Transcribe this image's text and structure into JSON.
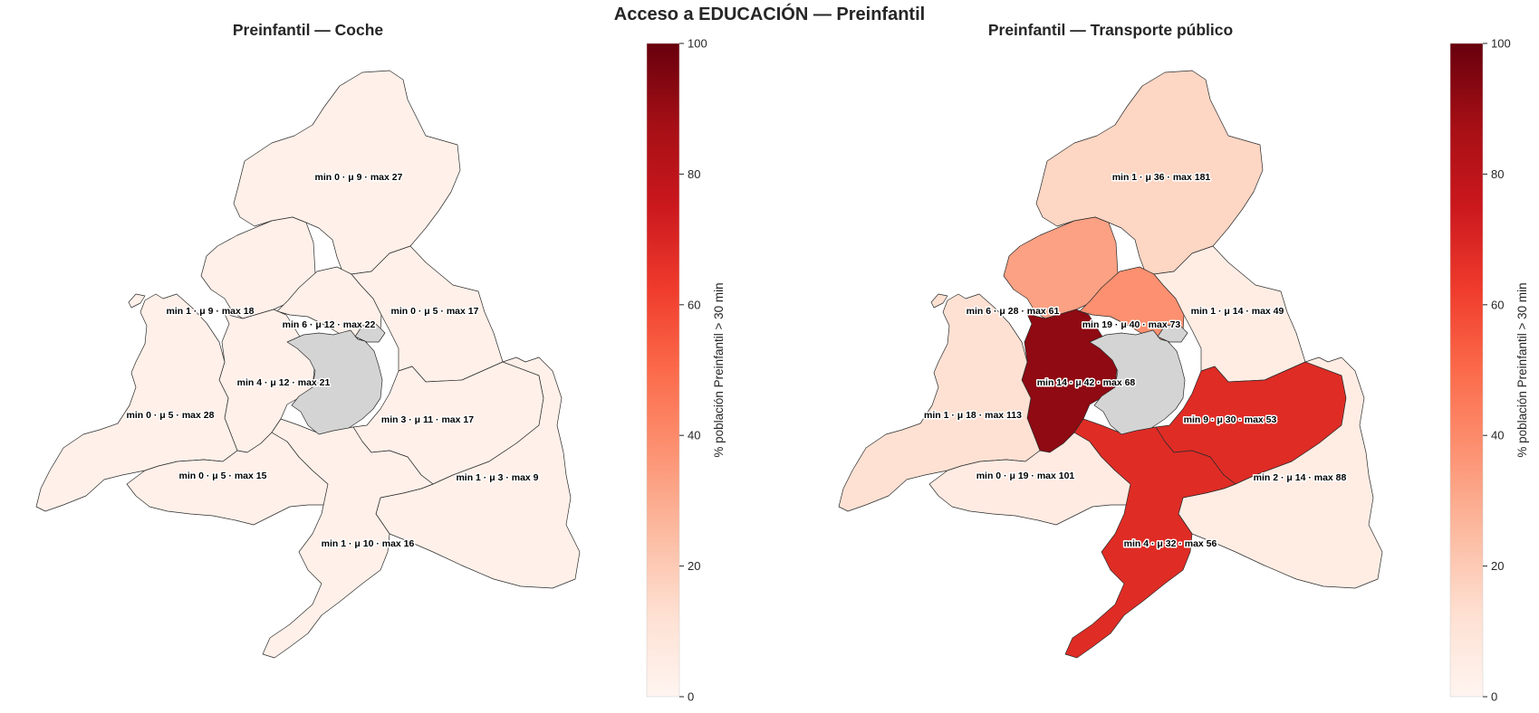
{
  "suptitle": "Acceso a EDUCACIÓN — Preinfantil",
  "colors": {
    "missing": "#d4d4d4",
    "cmap": "Reds",
    "border": "#2b2b2b"
  },
  "colorbar": {
    "label": "% población Preinfantil > 30 min",
    "ticks": [
      "0",
      "20",
      "40",
      "60",
      "80",
      "100"
    ],
    "vmin": 0,
    "vmax": 100
  },
  "chart_data": [
    {
      "type": "choropleth",
      "title": "Preinfantil — Coche",
      "value_label": "% población Preinfantil > 30 min",
      "regions": [
        {
          "id": "north",
          "label": "min 0 · μ 9 · max 27",
          "pct": 3
        },
        {
          "id": "northwest",
          "label": "min 1 · μ 9 · max 18",
          "pct": 3
        },
        {
          "id": "centernorth",
          "label": "min 6 · μ 12 · max 22",
          "pct": 3
        },
        {
          "id": "northeast",
          "label": "min 0 · μ 5 · max 17",
          "pct": 3
        },
        {
          "id": "westcenter",
          "label": "min 4 · μ 12 · max 21",
          "pct": 3
        },
        {
          "id": "farwest",
          "label": "min 0 · μ 5 · max 28",
          "pct": 3
        },
        {
          "id": "east",
          "label": "min 3 · μ 11 · max 17",
          "pct": 3
        },
        {
          "id": "southwest",
          "label": "min 0 · μ 5 · max 15",
          "pct": 3
        },
        {
          "id": "farEast",
          "label": "min 1 · μ 3 · max 9",
          "pct": 3
        },
        {
          "id": "south",
          "label": "min 1 · μ 10 · max 16",
          "pct": 3
        },
        {
          "id": "capital",
          "label": "",
          "pct": null
        }
      ]
    },
    {
      "type": "choropleth",
      "title": "Preinfantil — Transporte público",
      "value_label": "% población Preinfantil > 30 min",
      "regions": [
        {
          "id": "north",
          "label": "min 1 · μ 36 · max 181",
          "pct": 16
        },
        {
          "id": "northwest",
          "label": "min 6 · μ 28 · max 61",
          "pct": 33
        },
        {
          "id": "centernorth",
          "label": "min 19 · μ 40 · max 73",
          "pct": 38
        },
        {
          "id": "northeast",
          "label": "min 1 · μ 14 · max 49",
          "pct": 5
        },
        {
          "id": "westcenter",
          "label": "min 14 · μ 42 · max 68",
          "pct": 92
        },
        {
          "id": "farwest",
          "label": "min 1 · μ 18 · max 113",
          "pct": 12
        },
        {
          "id": "east",
          "label": "min 9 · μ 30 · max 53",
          "pct": 68
        },
        {
          "id": "southwest",
          "label": "min 0 · μ 19 · max 101",
          "pct": 6
        },
        {
          "id": "farEast",
          "label": "min 2 · μ 14 · max 88",
          "pct": 5
        },
        {
          "id": "south",
          "label": "min 4 · μ 32 · max 56",
          "pct": 68
        },
        {
          "id": "capital",
          "label": "",
          "pct": null
        }
      ]
    }
  ]
}
